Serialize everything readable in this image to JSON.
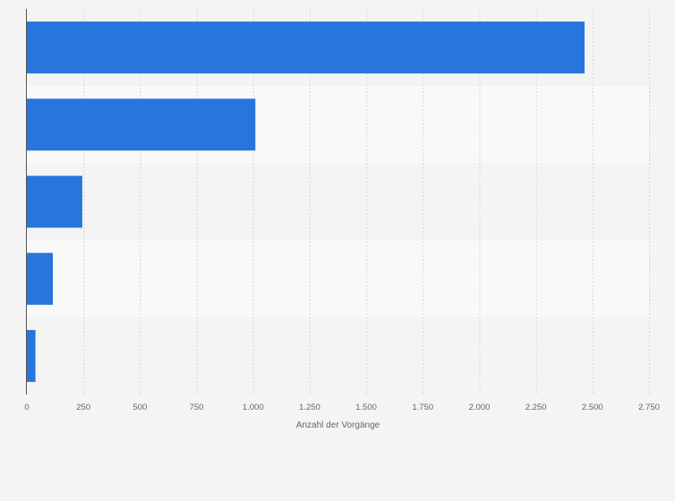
{
  "chart_data": {
    "type": "bar",
    "orientation": "horizontal",
    "categories": [
      "",
      "",
      "",
      "",
      ""
    ],
    "values": [
      2465,
      1010,
      245,
      115,
      38
    ],
    "title": "",
    "xlabel": "Anzahl der Vorgänge",
    "ylabel": "",
    "xlim": [
      0,
      2750
    ],
    "x_ticks": [
      0,
      250,
      500,
      750,
      1000,
      1250,
      1500,
      1750,
      2000,
      2250,
      2500,
      2750
    ],
    "x_tick_labels": [
      "0",
      "250",
      "500",
      "750",
      "1.000",
      "1.250",
      "1.500",
      "1.750",
      "2.000",
      "2.250",
      "2.500",
      "2.750"
    ],
    "grid": "vertical-dashed",
    "legend": "none",
    "bar_color": "#2775dd",
    "band_colors": [
      "#f4f4f4",
      "#f9f9f9"
    ],
    "background": "#f4f4f4"
  }
}
